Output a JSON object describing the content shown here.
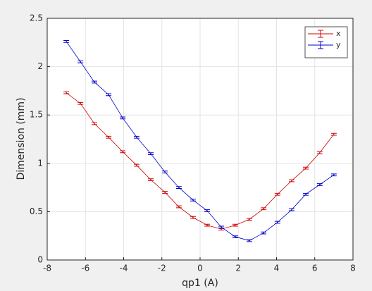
{
  "chart_data": {
    "type": "errorbar_line",
    "x_label": "qp1 (A)",
    "y_label": "Dimension (mm)",
    "x": [
      -7,
      -6.26,
      -5.53,
      -4.79,
      -4.05,
      -3.32,
      -2.58,
      -1.84,
      -1.11,
      -0.37,
      0.37,
      1.11,
      1.84,
      2.58,
      3.32,
      4.05,
      4.79,
      5.53,
      6.26,
      7
    ],
    "series": [
      {
        "name": "x",
        "color": "#d00000",
        "values": [
          1.73,
          1.62,
          1.41,
          1.27,
          1.12,
          0.98,
          0.83,
          0.7,
          0.55,
          0.44,
          0.36,
          0.32,
          0.36,
          0.42,
          0.53,
          0.68,
          0.82,
          0.95,
          1.11,
          1.3
        ],
        "errors": [
          0.01,
          0.01,
          0.01,
          0.01,
          0.01,
          0.01,
          0.01,
          0.01,
          0.01,
          0.01,
          0.01,
          0.01,
          0.01,
          0.01,
          0.01,
          0.01,
          0.01,
          0.01,
          0.01,
          0.01
        ]
      },
      {
        "name": "y",
        "color": "#0000c8",
        "values": [
          2.26,
          2.05,
          1.84,
          1.71,
          1.47,
          1.27,
          1.1,
          0.91,
          0.75,
          0.62,
          0.51,
          0.34,
          0.24,
          0.2,
          0.28,
          0.39,
          0.52,
          0.68,
          0.78,
          0.88
        ],
        "errors": [
          0.01,
          0.01,
          0.01,
          0.01,
          0.01,
          0.01,
          0.01,
          0.01,
          0.01,
          0.01,
          0.01,
          0.01,
          0.01,
          0.01,
          0.01,
          0.01,
          0.01,
          0.01,
          0.01,
          0.01
        ]
      }
    ],
    "xlim": [
      -8,
      8
    ],
    "xticks": [
      -8,
      -6,
      -4,
      -2,
      0,
      2,
      4,
      6,
      8
    ],
    "ylim": [
      0,
      2.5
    ],
    "yticks": [
      0,
      0.5,
      1,
      1.5,
      2,
      2.5
    ],
    "grid": true,
    "legend": "northeast"
  }
}
